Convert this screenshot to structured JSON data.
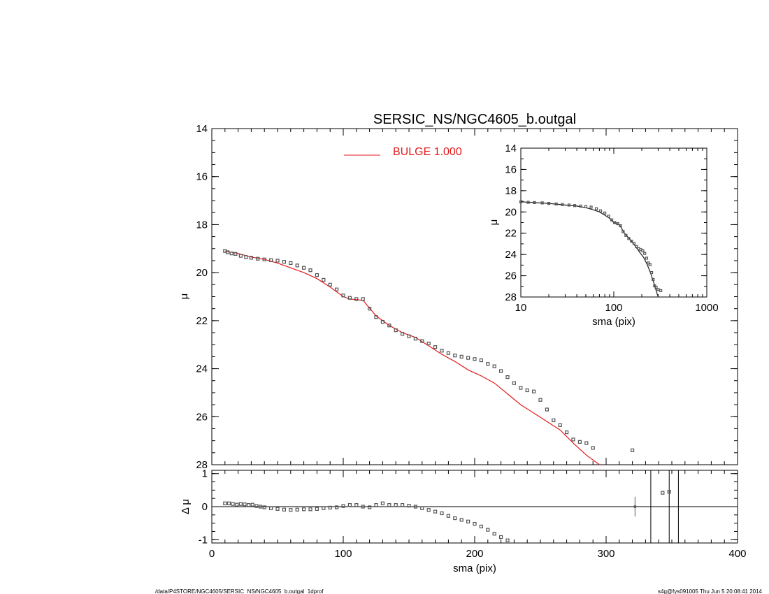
{
  "title": "SERSIC_NS/NGC4605_b.outgal",
  "footer": {
    "left": "/data/P4STORE/NGC4605/SERSIC_NS/NGC4605_b.outgal_1dprof",
    "right": "s4g@fys091005  Thu Jun  5 20:08:41 2014"
  },
  "colors": {
    "model": "#e41a1c",
    "points": "#555555",
    "axes": "#000000"
  },
  "chart_data": [
    {
      "id": "main",
      "type": "scatter",
      "xlabel": "sma (pix)",
      "ylabel": "μ",
      "xlim": [
        0,
        400
      ],
      "ylim": [
        28,
        14
      ],
      "x_ticks": [
        0,
        100,
        200,
        300,
        400
      ],
      "y_ticks": [
        14,
        16,
        18,
        20,
        22,
        24,
        26,
        28
      ],
      "legend": {
        "label": "BULGE  1.000",
        "placement": "top-center"
      },
      "series": [
        {
          "name": "BULGE  1.000",
          "style": "line",
          "points": [
            [
              10,
              19.1
            ],
            [
              20,
              19.2
            ],
            [
              30,
              19.35
            ],
            [
              40,
              19.45
            ],
            [
              50,
              19.6
            ],
            [
              60,
              19.8
            ],
            [
              70,
              20.0
            ],
            [
              80,
              20.25
            ],
            [
              90,
              20.6
            ],
            [
              100,
              21.0
            ],
            [
              105,
              21.1
            ],
            [
              115,
              21.15
            ],
            [
              125,
              21.8
            ],
            [
              135,
              22.2
            ],
            [
              145,
              22.5
            ],
            [
              155,
              22.7
            ],
            [
              165,
              23.05
            ],
            [
              175,
              23.4
            ],
            [
              185,
              23.7
            ],
            [
              195,
              24.05
            ],
            [
              205,
              24.3
            ],
            [
              215,
              24.6
            ],
            [
              225,
              25.05
            ],
            [
              235,
              25.5
            ],
            [
              245,
              25.85
            ],
            [
              255,
              26.2
            ],
            [
              265,
              26.55
            ],
            [
              275,
              27.1
            ],
            [
              285,
              27.6
            ],
            [
              295,
              28.0
            ]
          ]
        },
        {
          "style": "markers",
          "points": [
            [
              10,
              19.1
            ],
            [
              12,
              19.15
            ],
            [
              15,
              19.2
            ],
            [
              18,
              19.22
            ],
            [
              22,
              19.3
            ],
            [
              26,
              19.35
            ],
            [
              30,
              19.38
            ],
            [
              35,
              19.42
            ],
            [
              40,
              19.45
            ],
            [
              45,
              19.48
            ],
            [
              50,
              19.5
            ],
            [
              55,
              19.55
            ],
            [
              60,
              19.6
            ],
            [
              65,
              19.7
            ],
            [
              70,
              19.8
            ],
            [
              75,
              19.9
            ],
            [
              80,
              20.1
            ],
            [
              85,
              20.3
            ],
            [
              90,
              20.5
            ],
            [
              95,
              20.7
            ],
            [
              100,
              20.95
            ],
            [
              105,
              21.05
            ],
            [
              110,
              21.1
            ],
            [
              115,
              21.1
            ],
            [
              120,
              21.5
            ],
            [
              125,
              21.85
            ],
            [
              130,
              22.05
            ],
            [
              135,
              22.2
            ],
            [
              140,
              22.4
            ],
            [
              145,
              22.55
            ],
            [
              150,
              22.65
            ],
            [
              155,
              22.75
            ],
            [
              160,
              22.85
            ],
            [
              165,
              22.95
            ],
            [
              170,
              23.1
            ],
            [
              175,
              23.25
            ],
            [
              180,
              23.35
            ],
            [
              185,
              23.45
            ],
            [
              190,
              23.5
            ],
            [
              195,
              23.55
            ],
            [
              200,
              23.6
            ],
            [
              205,
              23.65
            ],
            [
              210,
              23.8
            ],
            [
              215,
              23.9
            ],
            [
              220,
              24.1
            ],
            [
              225,
              24.35
            ],
            [
              230,
              24.6
            ],
            [
              235,
              24.8
            ],
            [
              240,
              24.9
            ],
            [
              245,
              24.95
            ],
            [
              250,
              25.3
            ],
            [
              255,
              25.7
            ],
            [
              260,
              26.15
            ],
            [
              265,
              26.35
            ],
            [
              270,
              26.65
            ],
            [
              275,
              26.95
            ],
            [
              280,
              27.05
            ],
            [
              285,
              27.1
            ],
            [
              290,
              27.3
            ],
            [
              320,
              27.4
            ]
          ]
        }
      ]
    },
    {
      "id": "inset",
      "type": "scatter",
      "xlabel": "sma (pix)",
      "ylabel": "μ",
      "xscale": "log",
      "xlim": [
        10,
        1000
      ],
      "ylim": [
        28,
        14
      ],
      "x_ticks": [
        10,
        100,
        1000
      ],
      "y_ticks": [
        14,
        16,
        18,
        20,
        22,
        24,
        26,
        28
      ],
      "series": [
        {
          "style": "line",
          "points": [
            [
              10,
              19.05
            ],
            [
              20,
              19.2
            ],
            [
              30,
              19.35
            ],
            [
              40,
              19.45
            ],
            [
              50,
              19.6
            ],
            [
              60,
              19.8
            ],
            [
              70,
              20.0
            ],
            [
              80,
              20.3
            ],
            [
              90,
              20.6
            ],
            [
              100,
              21.0
            ],
            [
              115,
              21.2
            ],
            [
              130,
              22.0
            ],
            [
              150,
              22.6
            ],
            [
              170,
              23.2
            ],
            [
              190,
              23.8
            ],
            [
              210,
              24.3
            ],
            [
              230,
              25.0
            ],
            [
              250,
              25.8
            ],
            [
              270,
              26.7
            ],
            [
              290,
              27.6
            ],
            [
              300,
              28.0
            ]
          ]
        },
        {
          "style": "markers",
          "points": [
            [
              10,
              19.05
            ],
            [
              12,
              19.1
            ],
            [
              14,
              19.12
            ],
            [
              17,
              19.15
            ],
            [
              20,
              19.2
            ],
            [
              24,
              19.25
            ],
            [
              28,
              19.3
            ],
            [
              33,
              19.35
            ],
            [
              38,
              19.4
            ],
            [
              44,
              19.45
            ],
            [
              50,
              19.5
            ],
            [
              57,
              19.55
            ],
            [
              65,
              19.7
            ],
            [
              72,
              19.9
            ],
            [
              80,
              20.1
            ],
            [
              88,
              20.4
            ],
            [
              95,
              20.75
            ],
            [
              102,
              21.0
            ],
            [
              110,
              21.1
            ],
            [
              118,
              21.3
            ],
            [
              126,
              21.85
            ],
            [
              135,
              22.2
            ],
            [
              145,
              22.5
            ],
            [
              155,
              22.75
            ],
            [
              165,
              22.95
            ],
            [
              175,
              23.25
            ],
            [
              185,
              23.45
            ],
            [
              195,
              23.55
            ],
            [
              205,
              23.65
            ],
            [
              215,
              23.9
            ],
            [
              225,
              24.35
            ],
            [
              235,
              24.8
            ],
            [
              245,
              24.95
            ],
            [
              255,
              25.7
            ],
            [
              265,
              26.35
            ],
            [
              275,
              26.95
            ],
            [
              285,
              27.1
            ],
            [
              300,
              27.3
            ],
            [
              320,
              27.4
            ]
          ]
        }
      ]
    },
    {
      "id": "residual",
      "type": "scatter",
      "xlabel": "sma (pix)",
      "ylabel": "Δ μ",
      "xlim": [
        0,
        400
      ],
      "ylim": [
        -1.1,
        1.1
      ],
      "x_ticks": [
        0,
        100,
        200,
        300,
        400
      ],
      "y_ticks": [
        1,
        0,
        -1
      ],
      "reference_line": 0,
      "vertical_lines": [
        334,
        348,
        355
      ],
      "series": [
        {
          "style": "markers",
          "points": [
            [
              10,
              0.1
            ],
            [
              13,
              0.1
            ],
            [
              16,
              0.08
            ],
            [
              19,
              0.06
            ],
            [
              22,
              0.08
            ],
            [
              25,
              0.07
            ],
            [
              28,
              0.05
            ],
            [
              31,
              0.06
            ],
            [
              34,
              0.02
            ],
            [
              37,
              0.0
            ],
            [
              40,
              -0.02
            ],
            [
              45,
              -0.05
            ],
            [
              50,
              -0.07
            ],
            [
              55,
              -0.09
            ],
            [
              60,
              -0.1
            ],
            [
              65,
              -0.09
            ],
            [
              70,
              -0.08
            ],
            [
              75,
              -0.08
            ],
            [
              80,
              -0.07
            ],
            [
              85,
              -0.05
            ],
            [
              90,
              -0.03
            ],
            [
              95,
              -0.02
            ],
            [
              100,
              0.02
            ],
            [
              105,
              0.05
            ],
            [
              110,
              0.05
            ],
            [
              115,
              0.0
            ],
            [
              120,
              -0.02
            ],
            [
              125,
              0.05
            ],
            [
              130,
              0.1
            ],
            [
              135,
              0.05
            ],
            [
              140,
              0.05
            ],
            [
              145,
              0.05
            ],
            [
              150,
              0.03
            ],
            [
              155,
              0.0
            ],
            [
              160,
              -0.05
            ],
            [
              165,
              -0.1
            ],
            [
              170,
              -0.15
            ],
            [
              175,
              -0.2
            ],
            [
              180,
              -0.28
            ],
            [
              185,
              -0.35
            ],
            [
              190,
              -0.4
            ],
            [
              195,
              -0.45
            ],
            [
              200,
              -0.52
            ],
            [
              205,
              -0.6
            ],
            [
              210,
              -0.7
            ],
            [
              215,
              -0.82
            ],
            [
              220,
              -0.92
            ],
            [
              225,
              -1.02
            ],
            [
              343,
              0.42
            ],
            [
              348,
              0.45
            ]
          ]
        },
        {
          "style": "errorbar",
          "points": [
            [
              322,
              0.0,
              0.3
            ]
          ]
        }
      ]
    }
  ]
}
